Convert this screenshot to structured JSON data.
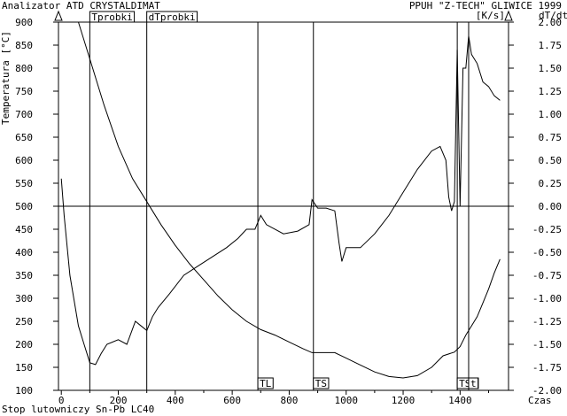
{
  "header": {
    "left_title": "Analizator ATD CRYSTALDIMAT",
    "right_title": "PPUH \"Z-TECH\" GLIWICE 1999",
    "unit_right": "[K/s]",
    "right_axis_label": "dT/dt"
  },
  "footer": {
    "sample_name": "Stop lutowniczy Sn-Pb LC40",
    "x_axis_label": "Czas"
  },
  "chart_data": {
    "type": "line",
    "xlabel": "Czas",
    "ylabel": "Temperatura [°C]",
    "y2label": "dT/dt [K/s]",
    "xlim": [
      -10,
      1570
    ],
    "ylim": [
      100,
      900
    ],
    "y2lim": [
      -2.0,
      2.0
    ],
    "x_ticks": [
      "0",
      "200",
      "400",
      "600",
      "800",
      "1000",
      "1200",
      "1400"
    ],
    "y_ticks": [
      "100",
      "150",
      "200",
      "250",
      "300",
      "350",
      "400",
      "450",
      "500",
      "550",
      "600",
      "650",
      "700",
      "750",
      "800",
      "850",
      "900"
    ],
    "y2_ticks": [
      "-2.00",
      "-1.75",
      "-1.50",
      "-1.25",
      "-1.00",
      "-0.75",
      "-0.50",
      "-0.25",
      "0.00",
      "0.25",
      "0.50",
      "0.75",
      "1.00",
      "1.25",
      "1.50",
      "1.75",
      "2.00"
    ],
    "grid": false,
    "series": [
      {
        "name": "T",
        "axis": "left",
        "x": [
          60,
          100,
          150,
          200,
          250,
          300,
          350,
          400,
          450,
          500,
          550,
          600,
          650,
          700,
          750,
          800,
          850,
          880,
          920,
          960,
          1000,
          1050,
          1100,
          1150,
          1200,
          1250,
          1300,
          1340,
          1380,
          1400,
          1420,
          1440,
          1460,
          1480,
          1500,
          1520,
          1540
        ],
        "y": [
          900,
          820,
          720,
          630,
          560,
          510,
          460,
          415,
          375,
          340,
          305,
          275,
          250,
          232,
          220,
          205,
          190,
          182,
          182,
          182,
          170,
          155,
          140,
          130,
          127,
          132,
          150,
          175,
          183,
          195,
          220,
          240,
          260,
          290,
          320,
          355,
          385
        ]
      },
      {
        "name": "dT/dt",
        "axis": "right",
        "x": [
          0,
          10,
          30,
          60,
          80,
          100,
          120,
          140,
          160,
          200,
          230,
          260,
          280,
          300,
          320,
          340,
          380,
          430,
          480,
          530,
          580,
          620,
          650,
          680,
          700,
          720,
          780,
          830,
          870,
          880,
          900,
          930,
          960,
          975,
          985,
          1000,
          1050,
          1100,
          1150,
          1200,
          1250,
          1300,
          1330,
          1350,
          1360,
          1370,
          1380,
          1390,
          1400,
          1410,
          1420,
          1430,
          1440,
          1460,
          1480,
          1500,
          1520,
          1540
        ],
        "y": [
          0.3,
          -0.1,
          -0.75,
          -1.3,
          -1.5,
          -1.7,
          -1.72,
          -1.6,
          -1.5,
          -1.45,
          -1.5,
          -1.25,
          -1.3,
          -1.35,
          -1.2,
          -1.1,
          -0.95,
          -0.75,
          -0.65,
          -0.55,
          -0.45,
          -0.35,
          -0.25,
          -0.25,
          -0.1,
          -0.2,
          -0.3,
          -0.27,
          -0.2,
          0.07,
          -0.02,
          -0.02,
          -0.05,
          -0.4,
          -0.6,
          -0.45,
          -0.45,
          -0.3,
          -0.1,
          0.15,
          0.4,
          0.6,
          0.65,
          0.5,
          0.1,
          -0.05,
          0.05,
          1.7,
          0.0,
          1.5,
          1.5,
          1.85,
          1.65,
          1.55,
          1.35,
          1.3,
          1.2,
          1.15
        ]
      }
    ],
    "markers": [
      {
        "label": "Tprobki",
        "x": 100,
        "position": "top"
      },
      {
        "label": "dTprobki",
        "x": 300,
        "position": "top"
      },
      {
        "label": "TL",
        "x": 690,
        "position": "bottom"
      },
      {
        "label": "TS",
        "x": 885,
        "position": "bottom"
      },
      {
        "label": "TSt",
        "x": 1390,
        "position": "bottom"
      },
      {
        "label": "t",
        "x": 1430,
        "position": "bottom"
      }
    ],
    "zero_line": {
      "axis": "right",
      "value": 0.0
    }
  }
}
